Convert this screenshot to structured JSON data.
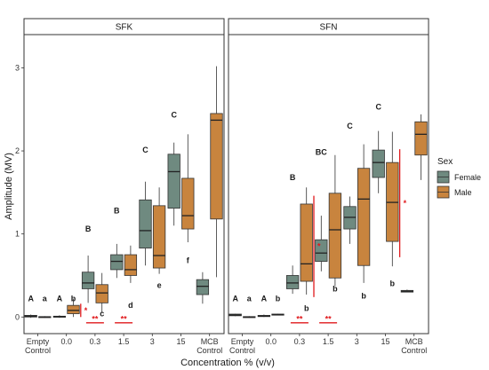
{
  "chart_data": {
    "type": "box",
    "ylabel": "Amplitude (MV)",
    "xlabel": "Concentration % (v/v)",
    "ylim": [
      -0.2,
      3.4
    ],
    "y_ticks": [
      "0",
      "1",
      "2",
      "3"
    ],
    "categories": [
      "Empty\nControl",
      "0.0",
      "0.3",
      "1.5",
      "3",
      "15",
      "MCB\nControl"
    ],
    "legend": {
      "title": "Sex",
      "placement": "right",
      "entries": [
        {
          "label": "Female",
          "color": "#6f8a80"
        },
        {
          "label": "Male",
          "color": "#c8843e"
        }
      ]
    },
    "colors": {
      "Female": "#6f8a80",
      "Male": "#c8843e",
      "significance": "#e0191c"
    },
    "panels": [
      {
        "name": "SFK",
        "boxes": [
          {
            "category": "Empty\nControl",
            "sex": "Female",
            "stats": [
              -0.01,
              0.0,
              0.01,
              0.02,
              0.03
            ]
          },
          {
            "category": "Empty\nControl",
            "sex": "Male",
            "stats": [
              -0.01,
              0.0,
              0.0,
              0.005,
              0.01
            ]
          },
          {
            "category": "0.0",
            "sex": "Female",
            "stats": [
              -0.01,
              0.0,
              0.005,
              0.01,
              0.02
            ]
          },
          {
            "category": "0.0",
            "sex": "Male",
            "stats": [
              0.0,
              0.04,
              0.08,
              0.14,
              0.22
            ]
          },
          {
            "category": "0.3",
            "sex": "Female",
            "stats": [
              0.17,
              0.34,
              0.41,
              0.54,
              0.74
            ]
          },
          {
            "category": "0.3",
            "sex": "Male",
            "stats": [
              0.05,
              0.17,
              0.29,
              0.39,
              0.53
            ]
          },
          {
            "category": "1.5",
            "sex": "Female",
            "stats": [
              0.47,
              0.57,
              0.67,
              0.75,
              0.88
            ]
          },
          {
            "category": "1.5",
            "sex": "Male",
            "stats": [
              0.41,
              0.5,
              0.57,
              0.75,
              0.86
            ]
          },
          {
            "category": "3",
            "sex": "Female",
            "stats": [
              0.62,
              0.83,
              1.04,
              1.41,
              1.63
            ]
          },
          {
            "category": "3",
            "sex": "Male",
            "stats": [
              0.52,
              0.59,
              0.74,
              1.34,
              1.56
            ]
          },
          {
            "category": "15",
            "sex": "Female",
            "stats": [
              1.1,
              1.31,
              1.75,
              1.96,
              2.1
            ]
          },
          {
            "category": "15",
            "sex": "Male",
            "stats": [
              0.9,
              1.06,
              1.22,
              1.67,
              2.2
            ]
          },
          {
            "category": "MCB\nControl",
            "sex": "Female",
            "stats": [
              0.16,
              0.27,
              0.37,
              0.45,
              0.54
            ]
          },
          {
            "category": "MCB\nControl",
            "sex": "Male",
            "stats": [
              0.48,
              1.18,
              2.37,
              2.45,
              3.02
            ]
          }
        ],
        "letters": [
          {
            "category": "Empty\nControl",
            "sex": "Female",
            "text": "A",
            "y": 0.19
          },
          {
            "category": "Empty\nControl",
            "sex": "Male",
            "text": "a",
            "y": 0.19
          },
          {
            "category": "0.0",
            "sex": "Female",
            "text": "A",
            "y": 0.19
          },
          {
            "category": "0.0",
            "sex": "Male",
            "text": "b",
            "y": 0.19
          },
          {
            "category": "0.3",
            "sex": "Female",
            "text": "B",
            "y": 1.03
          },
          {
            "category": "0.3",
            "sex": "Male",
            "text": "c",
            "y": 0.01
          },
          {
            "category": "1.5",
            "sex": "Female",
            "text": "B",
            "y": 1.25
          },
          {
            "category": "1.5",
            "sex": "Male",
            "text": "d",
            "y": 0.11
          },
          {
            "category": "3",
            "sex": "Female",
            "text": "C",
            "y": 1.98
          },
          {
            "category": "3",
            "sex": "Male",
            "text": "e",
            "y": 0.35
          },
          {
            "category": "15",
            "sex": "Female",
            "text": "C",
            "y": 2.4
          },
          {
            "category": "15",
            "sex": "Male",
            "text": "f",
            "y": 0.65
          }
        ],
        "significance": [
          {
            "kind": "vline",
            "between": [
              "0.0",
              "0.3"
            ],
            "y_range": [
              0.0,
              0.16
            ],
            "star": "*"
          },
          {
            "kind": "hline",
            "category": "0.3",
            "y": -0.07,
            "star": "**"
          },
          {
            "kind": "hline",
            "category": "1.5",
            "y": -0.07,
            "star": "**"
          }
        ]
      },
      {
        "name": "SFN",
        "boxes": [
          {
            "category": "Empty\nControl",
            "sex": "Female",
            "stats": [
              0.01,
              0.015,
              0.025,
              0.035,
              0.04
            ]
          },
          {
            "category": "Empty\nControl",
            "sex": "Male",
            "stats": [
              -0.01,
              0.0,
              0.0,
              0.005,
              0.01
            ]
          },
          {
            "category": "0.0",
            "sex": "Female",
            "stats": [
              0.0,
              0.005,
              0.01,
              0.02,
              0.03
            ]
          },
          {
            "category": "0.0",
            "sex": "Male",
            "stats": [
              0.02,
              0.025,
              0.03,
              0.035,
              0.04
            ]
          },
          {
            "category": "0.3",
            "sex": "Female",
            "stats": [
              0.28,
              0.34,
              0.41,
              0.5,
              0.62
            ]
          },
          {
            "category": "0.3",
            "sex": "Male",
            "stats": [
              0.27,
              0.43,
              0.64,
              1.36,
              1.56
            ]
          },
          {
            "category": "1.5",
            "sex": "Female",
            "stats": [
              0.55,
              0.67,
              0.77,
              0.93,
              1.22
            ]
          },
          {
            "category": "1.5",
            "sex": "Male",
            "stats": [
              0.37,
              0.47,
              1.05,
              1.49,
              1.95
            ]
          },
          {
            "category": "3",
            "sex": "Female",
            "stats": [
              0.88,
              1.06,
              1.2,
              1.33,
              1.45
            ]
          },
          {
            "category": "3",
            "sex": "Male",
            "stats": [
              0.41,
              0.62,
              1.42,
              1.79,
              2.08
            ]
          },
          {
            "category": "15",
            "sex": "Female",
            "stats": [
              1.49,
              1.68,
              1.86,
              2.01,
              2.24
            ]
          },
          {
            "category": "15",
            "sex": "Male",
            "stats": [
              0.61,
              0.91,
              1.38,
              1.86,
              2.23
            ]
          },
          {
            "category": "MCB\nControl",
            "sex": "Female",
            "stats": [
              0.3,
              0.3,
              0.31,
              0.32,
              0.33
            ]
          },
          {
            "category": "MCB\nControl",
            "sex": "Male",
            "stats": [
              1.65,
              1.95,
              2.2,
              2.35,
              2.44
            ]
          }
        ],
        "letters": [
          {
            "category": "Empty\nControl",
            "sex": "Female",
            "text": "A",
            "y": 0.19
          },
          {
            "category": "Empty\nControl",
            "sex": "Male",
            "text": "a",
            "y": 0.19
          },
          {
            "category": "0.0",
            "sex": "Female",
            "text": "A",
            "y": 0.19
          },
          {
            "category": "0.0",
            "sex": "Male",
            "text": "b",
            "y": 0.19
          },
          {
            "category": "0.3",
            "sex": "Female",
            "text": "B",
            "y": 1.65
          },
          {
            "category": "0.3",
            "sex": "Male",
            "text": "b",
            "y": 0.07
          },
          {
            "category": "1.5",
            "sex": "Female",
            "text": "BC",
            "y": 1.95
          },
          {
            "category": "1.5",
            "sex": "Male",
            "text": "b",
            "y": 0.31
          },
          {
            "category": "3",
            "sex": "Female",
            "text": "C",
            "y": 2.27
          },
          {
            "category": "3",
            "sex": "Male",
            "text": "b",
            "y": 0.22
          },
          {
            "category": "15",
            "sex": "Female",
            "text": "C",
            "y": 2.5
          },
          {
            "category": "15",
            "sex": "Male",
            "text": "b",
            "y": 0.37
          }
        ],
        "significance": [
          {
            "kind": "vline",
            "between": [
              "0.3",
              "1.5"
            ],
            "y_range": [
              0.24,
              1.46
            ],
            "star": "*"
          },
          {
            "kind": "vline",
            "between": [
              "15",
              "MCB\nControl"
            ],
            "y_range": [
              0.72,
              2.02
            ],
            "star": "*"
          },
          {
            "kind": "hline",
            "category": "0.3",
            "y": -0.07,
            "star": "**"
          },
          {
            "kind": "hline",
            "category": "1.5",
            "y": -0.07,
            "star": "**"
          }
        ]
      }
    ]
  }
}
